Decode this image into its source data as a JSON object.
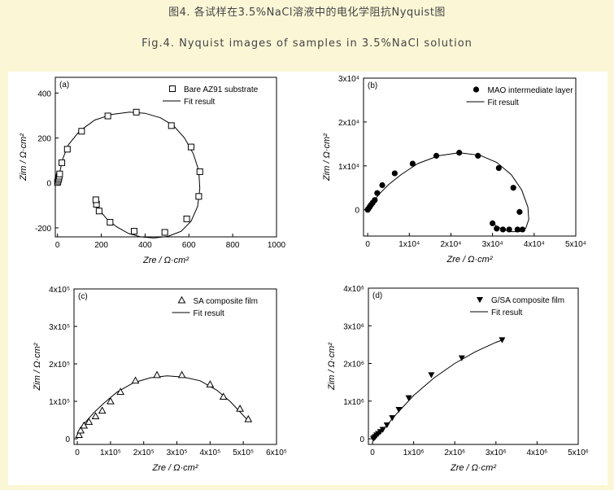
{
  "caption": {
    "zh": "图4. 各试样在3.5%NaCl溶液中的电化学阻抗Nyquist图",
    "en": "Fig.4. Nyquist images of samples in 3.5%NaCl solution"
  },
  "colors": {
    "caption_bg": "#fbf7d6",
    "figure_bg": "#ffffff",
    "ink": "#000000"
  },
  "chart_data": [
    {
      "panel": "(a)",
      "type": "scatter",
      "marker": "open-square",
      "series": [
        {
          "name": "Bare AZ91 substrate",
          "x": [
            0,
            2,
            4,
            6,
            8,
            10,
            20,
            45,
            110,
            230,
            360,
            520,
            610,
            650,
            645,
            590,
            490,
            350,
            240,
            190,
            178,
            175
          ],
          "y": [
            2,
            8,
            15,
            22,
            30,
            40,
            90,
            150,
            230,
            298,
            315,
            255,
            160,
            50,
            -60,
            -160,
            -220,
            -215,
            -175,
            -125,
            -95,
            -75
          ]
        },
        {
          "name": "Fit result",
          "line": true
        }
      ],
      "fit": {
        "x": [
          0,
          6,
          12,
          25,
          50,
          100,
          170,
          250,
          330,
          400,
          470,
          530,
          580,
          620,
          645,
          650,
          640,
          610,
          565,
          505,
          440,
          380,
          325,
          270,
          225,
          195,
          180,
          175
        ],
        "y": [
          0,
          20,
          55,
          110,
          170,
          230,
          280,
          305,
          315,
          310,
          290,
          255,
          200,
          130,
          55,
          -25,
          -105,
          -170,
          -215,
          -238,
          -245,
          -240,
          -225,
          -195,
          -160,
          -125,
          -95,
          -80
        ]
      },
      "xlabel": "Zre / Ω·cm²",
      "ylabel": "Zim / Ω·cm²",
      "xlim": [
        -10,
        1000
      ],
      "ylim": [
        -240,
        470
      ],
      "xticks": [
        0,
        200,
        400,
        600,
        800,
        1000
      ],
      "xtick_labels": [
        "0",
        "200",
        "400",
        "600",
        "800",
        "1000"
      ],
      "yticks": [
        -200,
        0,
        200,
        400
      ],
      "ytick_labels": [
        "-200",
        "0",
        "200",
        "400"
      ],
      "legend_placement": "top-right"
    },
    {
      "panel": "(b)",
      "type": "scatter",
      "marker": "filled-circle",
      "series": [
        {
          "name": "MAO intermediate layer",
          "x": [
            0,
            100,
            300,
            500,
            800,
            1200,
            1700,
            2300,
            3500,
            6500,
            10800,
            16500,
            22000,
            26500,
            31500,
            35000,
            36500,
            37200,
            36000,
            34000,
            32500,
            31000,
            30000
          ],
          "y": [
            0,
            150,
            400,
            700,
            1100,
            1600,
            2200,
            3800,
            5600,
            8300,
            10500,
            12300,
            13000,
            12300,
            9500,
            5000,
            -500,
            -4500,
            -4500,
            -4500,
            -4500,
            -4300,
            -3100
          ]
        },
        {
          "name": "Fit result",
          "line": true
        }
      ],
      "fit": {
        "x": [
          0,
          500,
          1500,
          3000,
          5000,
          8000,
          12000,
          17000,
          22000,
          27000,
          31000,
          34500,
          37000,
          38500,
          38700,
          38000,
          36500,
          34500,
          32500,
          31000,
          30000
        ],
        "y": [
          0,
          800,
          2100,
          3800,
          5700,
          8000,
          10500,
          12300,
          13000,
          12400,
          10800,
          8000,
          4500,
          600,
          -2200,
          -4200,
          -5000,
          -5000,
          -4500,
          -3800,
          -3000
        ]
      },
      "xlabel": "Zre / Ω·cm²",
      "ylabel": "Zim / Ω·cm²",
      "xlim": [
        -1000,
        50000
      ],
      "ylim": [
        -6000,
        30000
      ],
      "xticks": [
        0,
        10000,
        20000,
        30000,
        40000,
        50000
      ],
      "xtick_labels": [
        "0",
        "1x10⁴",
        "2x10⁴",
        "3x10⁴",
        "4x10⁴",
        "5x10⁴"
      ],
      "yticks": [
        0,
        10000,
        20000,
        30000
      ],
      "ytick_labels": [
        "0",
        "1x10⁴",
        "2x10⁴",
        "3x10⁴"
      ],
      "legend_placement": "top-right"
    },
    {
      "panel": "(c)",
      "type": "scatter",
      "marker": "open-triangle",
      "series": [
        {
          "name": "SA composite film",
          "x": [
            5000,
            10000,
            20000,
            35000,
            55000,
            75000,
            100000,
            130000,
            175000,
            240000,
            315000,
            400000,
            440000,
            490000,
            515000
          ],
          "y": [
            10000,
            22000,
            35000,
            45000,
            60000,
            75000,
            100000,
            125000,
            155000,
            170000,
            170000,
            145000,
            112000,
            80000,
            52000
          ]
        },
        {
          "name": "Fit result",
          "line": true
        }
      ],
      "fit": {
        "x": [
          0,
          10000,
          25000,
          50000,
          80000,
          120000,
          170000,
          220000,
          270000,
          320000,
          370000,
          420000,
          460000,
          490000,
          515000
        ],
        "y": [
          0,
          25000,
          45000,
          70000,
          95000,
          125000,
          150000,
          163000,
          168000,
          165000,
          155000,
          130000,
          100000,
          72000,
          48000
        ]
      },
      "xlabel": "Zre / Ω·cm²",
      "ylabel": "Zim / Ω·cm²",
      "xlim": [
        -10000,
        600000
      ],
      "ylim": [
        -15000,
        400000
      ],
      "xticks": [
        0,
        100000,
        200000,
        300000,
        400000,
        500000,
        600000
      ],
      "xtick_labels": [
        "0",
        "1x10⁵",
        "2x10⁵",
        "3x10⁵",
        "4x10⁵",
        "5x10⁵",
        "6x10⁵"
      ],
      "yticks": [
        0,
        100000,
        200000,
        300000,
        400000
      ],
      "ytick_labels": [
        "0",
        "1x10⁵",
        "2x10⁵",
        "3x10⁵",
        "4x10⁵"
      ],
      "legend_placement": "top-right"
    },
    {
      "panel": "(d)",
      "type": "scatter",
      "marker": "filled-down-triangle",
      "series": [
        {
          "name": "G/SA composite film",
          "x": [
            20000,
            40000,
            70000,
            100000,
            140000,
            190000,
            250000,
            350000,
            480000,
            640000,
            880000,
            1430000,
            2170000,
            3150000
          ],
          "y": [
            10000,
            30000,
            60000,
            100000,
            140000,
            190000,
            250000,
            370000,
            560000,
            780000,
            1090000,
            1700000,
            2150000,
            2630000
          ]
        },
        {
          "name": "Fit result",
          "line": true
        }
      ],
      "fit": {
        "x": [
          0,
          100000,
          300000,
          600000,
          1000000,
          1500000,
          2000000,
          2500000,
          3000000,
          3200000
        ],
        "y": [
          0,
          90000,
          300000,
          680000,
          1150000,
          1620000,
          2000000,
          2310000,
          2560000,
          2640000
        ]
      },
      "xlabel": "Zre / Ω·cm²",
      "ylabel": "Zim / Ω·cm²",
      "xlim": [
        -100000,
        5000000
      ],
      "ylim": [
        -150000,
        4000000
      ],
      "xticks": [
        0,
        1000000,
        2000000,
        3000000,
        4000000,
        5000000
      ],
      "xtick_labels": [
        "0",
        "1x10⁶",
        "2x10⁶",
        "3x10⁶",
        "4x10⁶",
        "5x10⁶"
      ],
      "yticks": [
        0,
        1000000,
        2000000,
        3000000,
        4000000
      ],
      "ytick_labels": [
        "0",
        "1x10⁶",
        "2x10⁶",
        "3x10⁶",
        "4x10⁶"
      ],
      "legend_placement": "top-right"
    }
  ]
}
